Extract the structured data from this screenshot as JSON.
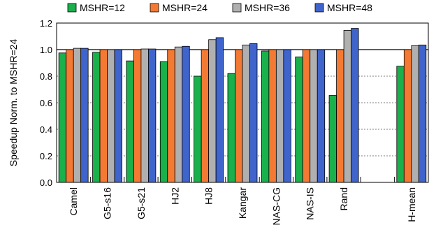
{
  "chart_data": {
    "type": "bar",
    "ylabel": "Speedup Norm. to MSHR=24",
    "xlabel": "",
    "ylim": [
      0,
      1.2
    ],
    "yticks": [
      "0.0",
      "0.2",
      "0.4",
      "0.6",
      "0.8",
      "1.0",
      "1.2"
    ],
    "grid": "horizontal dashed",
    "legend_position": "top",
    "categories": [
      "Camel",
      "G5-s16",
      "G5-s21",
      "HJ2",
      "HJ8",
      "Kangar",
      "NAS-CG",
      "NAS-IS",
      "Rand",
      "",
      "H-mean"
    ],
    "series": [
      {
        "name": "MSHR=12",
        "color": "#1ab04c",
        "values": [
          0.975,
          0.98,
          0.915,
          0.91,
          0.8,
          0.82,
          0.99,
          0.945,
          0.655,
          null,
          0.875
        ]
      },
      {
        "name": "MSHR=24",
        "color": "#f47a33",
        "values": [
          1.0,
          1.0,
          1.0,
          1.0,
          1.0,
          1.0,
          1.0,
          1.0,
          1.0,
          null,
          1.0
        ]
      },
      {
        "name": "MSHR=36",
        "color": "#b0b0b0",
        "values": [
          1.01,
          1.0,
          1.005,
          1.02,
          1.075,
          1.035,
          1.0,
          1.0,
          1.145,
          null,
          1.03
        ]
      },
      {
        "name": "MSHR=48",
        "color": "#3f64cc",
        "values": [
          1.01,
          1.0,
          1.005,
          1.025,
          1.09,
          1.045,
          1.0,
          1.0,
          1.16,
          null,
          1.035
        ]
      }
    ]
  }
}
